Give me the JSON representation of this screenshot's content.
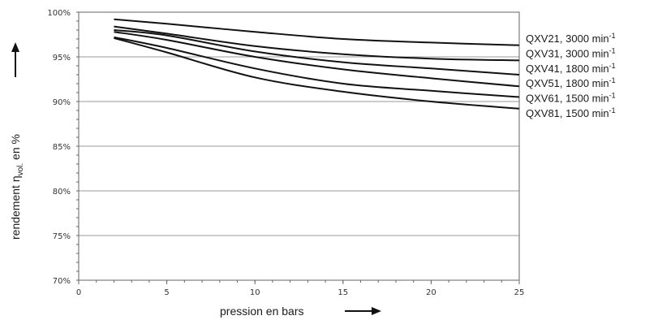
{
  "chart_data": {
    "type": "line",
    "xlabel": "pression en bars",
    "ylabel_prefix": "rendement η",
    "ylabel_subscript": "vol.",
    "ylabel_suffix": " en %",
    "xlim": [
      0,
      25
    ],
    "ylim": [
      70,
      100
    ],
    "x_ticks": [
      0,
      5,
      10,
      15,
      20,
      25
    ],
    "y_ticks": [
      70,
      75,
      80,
      85,
      90,
      95,
      100
    ],
    "y_tick_suffix": "%",
    "grid": "horizontal",
    "series": [
      {
        "name": "QXV21, 3000 min",
        "x": [
          2,
          5,
          10,
          15,
          20,
          25
        ],
        "values": [
          99.2,
          98.7,
          97.8,
          97.0,
          96.6,
          96.3
        ]
      },
      {
        "name": "QXV31, 3000 min",
        "x": [
          2,
          5,
          10,
          15,
          20,
          25
        ],
        "values": [
          98.4,
          97.6,
          96.2,
          95.3,
          94.8,
          94.6
        ]
      },
      {
        "name": "QXV41, 1800 min",
        "x": [
          2,
          5,
          10,
          15,
          20,
          25
        ],
        "values": [
          98.0,
          97.4,
          95.6,
          94.4,
          93.7,
          93.0
        ]
      },
      {
        "name": "QXV51, 1800 min",
        "x": [
          2,
          5,
          10,
          15,
          20,
          25
        ],
        "values": [
          97.8,
          96.9,
          95.0,
          93.6,
          92.6,
          91.7
        ]
      },
      {
        "name": "QXV61, 1500 min",
        "x": [
          2,
          5,
          10,
          15,
          20,
          25
        ],
        "values": [
          97.2,
          96.0,
          93.7,
          92.0,
          91.2,
          90.5
        ]
      },
      {
        "name": "QXV81, 1500 min",
        "x": [
          2,
          5,
          10,
          15,
          20,
          25
        ],
        "values": [
          97.1,
          95.5,
          92.7,
          91.1,
          90.0,
          89.2
        ]
      }
    ],
    "label_superscript": "-1",
    "colors": {
      "lines": "#111111",
      "grid": "#9a9a9a",
      "axis": "#666666"
    }
  }
}
